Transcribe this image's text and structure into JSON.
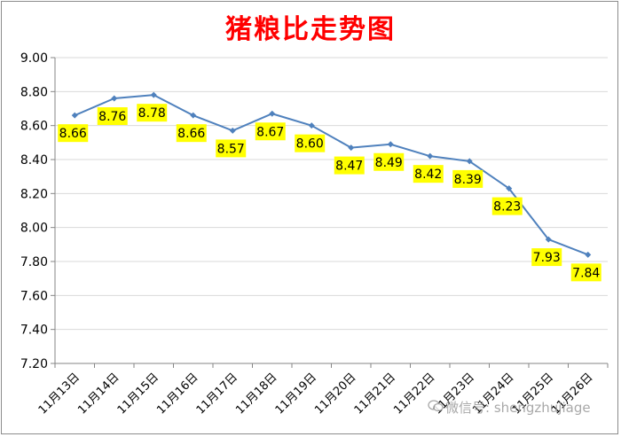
{
  "colors": {
    "title": "#ff0000",
    "line": "#4f81bd",
    "label_bg": "#ffff00",
    "grid": "#d9d9d9",
    "axis": "#868686"
  },
  "icons": {
    "watermark": "wechat-icon"
  },
  "watermark": "微信号: shengzhujiage",
  "chart_data": {
    "type": "line",
    "title": "猪粮比走势图",
    "xlabel": "",
    "ylabel": "",
    "ylim": [
      7.2,
      9.0
    ],
    "yticks": [
      "9.00",
      "8.80",
      "8.60",
      "8.40",
      "8.20",
      "8.00",
      "7.80",
      "7.60",
      "7.40",
      "7.20"
    ],
    "grid": true,
    "legend": "none",
    "categories": [
      "11月13日",
      "11月14日",
      "11月15日",
      "11月16日",
      "11月17日",
      "11月18日",
      "11月19日",
      "11月20日",
      "11月21日",
      "11月22日",
      "11月23日",
      "11月24日",
      "11月25日",
      "11月26日"
    ],
    "values": [
      8.66,
      8.76,
      8.78,
      8.66,
      8.57,
      8.67,
      8.6,
      8.47,
      8.49,
      8.42,
      8.39,
      8.23,
      7.93,
      7.84
    ],
    "value_labels": [
      "8.66",
      "8.76",
      "8.78",
      "8.66",
      "8.57",
      "8.67",
      "8.60",
      "8.47",
      "8.49",
      "8.42",
      "8.39",
      "8.23",
      "7.93",
      "7.84"
    ]
  }
}
